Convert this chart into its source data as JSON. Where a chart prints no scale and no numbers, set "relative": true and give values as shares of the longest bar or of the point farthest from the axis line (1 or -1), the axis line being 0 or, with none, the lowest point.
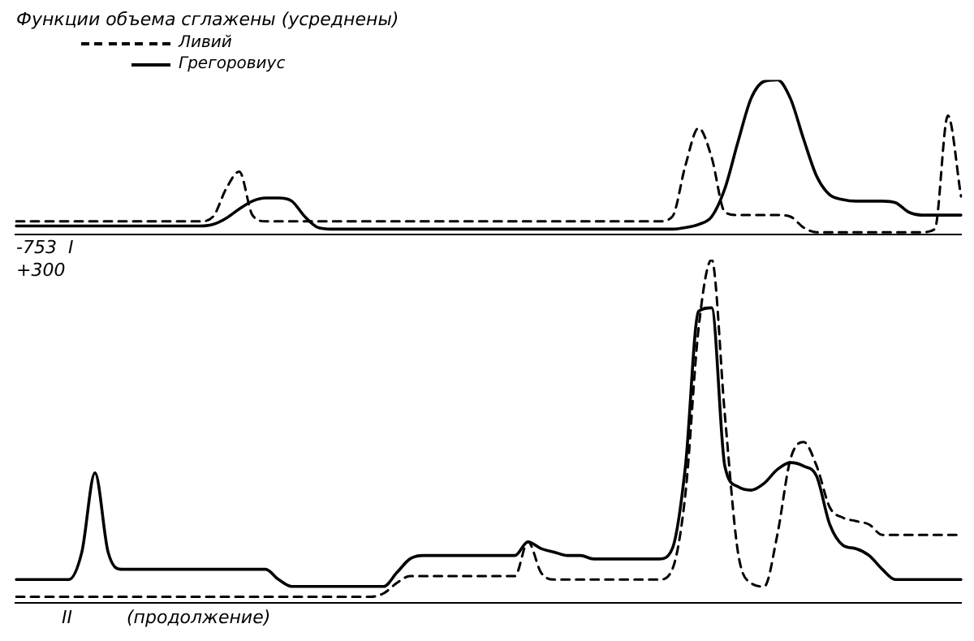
{
  "chart_data": [
    {
      "type": "line",
      "title": "Функции объема сглажены (усреднены)",
      "relative": true,
      "legend": "top left",
      "categories": [
        null,
        null,
        null,
        null,
        null,
        null,
        null,
        null,
        null,
        null,
        null,
        null,
        null,
        null,
        null,
        null,
        null,
        null,
        null,
        null,
        null,
        null,
        null,
        null,
        null,
        null,
        null,
        null,
        null,
        null,
        null,
        null,
        null,
        null,
        null,
        null,
        null,
        null,
        null,
        null,
        null,
        null,
        null,
        null,
        null,
        null,
        null,
        null,
        null,
        null,
        null,
        null,
        null,
        null,
        null,
        null,
        null,
        null,
        null,
        null,
        null,
        null,
        null,
        null,
        null,
        null,
        null,
        null,
        null,
        null,
        null,
        null,
        null
      ],
      "series": [
        {
          "name": "Ливий",
          "color": "#000000",
          "line_style": "dashed",
          "values": [
            0.09,
            0.09,
            0.09,
            0.09,
            0.09,
            0.09,
            0.09,
            0.09,
            0.09,
            0.09,
            0.09,
            0.09,
            0.09,
            0.09,
            0.09,
            0.12,
            0.3,
            0.41,
            0.13,
            0.09,
            0.09,
            0.09,
            0.09,
            0.09,
            0.09,
            0.09,
            0.09,
            0.09,
            0.09,
            0.09,
            0.09,
            0.09,
            0.09,
            0.09,
            0.09,
            0.09,
            0.09,
            0.09,
            0.09,
            0.09,
            0.09,
            0.09,
            0.09,
            0.09,
            0.09,
            0.09,
            0.09,
            0.09,
            0.09,
            0.09,
            0.12,
            0.45,
            0.69,
            0.5,
            0.15,
            0.13,
            0.13,
            0.13,
            0.13,
            0.12,
            0.05,
            0.02,
            0.02,
            0.02,
            0.02,
            0.02,
            0.02,
            0.02,
            0.02,
            0.02,
            0.04,
            0.77,
            0.25
          ]
        },
        {
          "name": "Грегоровиус",
          "color": "#000000",
          "line_style": "solid",
          "values": [
            0.06,
            0.06,
            0.06,
            0.06,
            0.06,
            0.06,
            0.06,
            0.06,
            0.06,
            0.06,
            0.06,
            0.06,
            0.06,
            0.06,
            0.06,
            0.07,
            0.11,
            0.17,
            0.22,
            0.24,
            0.24,
            0.22,
            0.12,
            0.05,
            0.04,
            0.04,
            0.04,
            0.04,
            0.04,
            0.04,
            0.04,
            0.04,
            0.04,
            0.04,
            0.04,
            0.04,
            0.04,
            0.04,
            0.04,
            0.04,
            0.04,
            0.04,
            0.04,
            0.04,
            0.04,
            0.04,
            0.04,
            0.04,
            0.04,
            0.04,
            0.04,
            0.05,
            0.07,
            0.12,
            0.3,
            0.6,
            0.88,
            0.99,
            1,
            0.88,
            0.62,
            0.38,
            0.26,
            0.23,
            0.22,
            0.22,
            0.22,
            0.21,
            0.15,
            0.13,
            0.13,
            0.13,
            0.13
          ]
        }
      ],
      "annotations": [
        "-753",
        "I"
      ]
    },
    {
      "type": "line",
      "relative": true,
      "categories": [
        null,
        null,
        null,
        null,
        null,
        null,
        null,
        null,
        null,
        null,
        null,
        null,
        null,
        null,
        null,
        null,
        null,
        null,
        null,
        null,
        null,
        null,
        null,
        null,
        null,
        null,
        null,
        null,
        null,
        null,
        null,
        null,
        null,
        null,
        null,
        null,
        null,
        null,
        null,
        null,
        null,
        null,
        null,
        null,
        null,
        null,
        null,
        null,
        null,
        null,
        null,
        null,
        null,
        null,
        null,
        null,
        null,
        null,
        null,
        null,
        null,
        null,
        null,
        null,
        null,
        null,
        null,
        null,
        null,
        null,
        null,
        null,
        null
      ],
      "series": [
        {
          "color": "#000000",
          "line_style": "dashed",
          "values": [
            0.02,
            0.02,
            0.02,
            0.02,
            0.02,
            0.02,
            0.02,
            0.02,
            0.02,
            0.02,
            0.02,
            0.02,
            0.02,
            0.02,
            0.02,
            0.02,
            0.02,
            0.02,
            0.02,
            0.02,
            0.02,
            0.02,
            0.02,
            0.02,
            0.02,
            0.02,
            0.02,
            0.02,
            0.03,
            0.06,
            0.08,
            0.08,
            0.08,
            0.08,
            0.08,
            0.08,
            0.08,
            0.08,
            0.08,
            0.18,
            0.09,
            0.07,
            0.07,
            0.07,
            0.07,
            0.07,
            0.07,
            0.07,
            0.07,
            0.07,
            0.1,
            0.32,
            0.8,
            1,
            0.55,
            0.15,
            0.06,
            0.05,
            0.2,
            0.42,
            0.47,
            0.4,
            0.28,
            0.25,
            0.24,
            0.23,
            0.2,
            0.2,
            0.2,
            0.2,
            0.2,
            0.2,
            0.2
          ]
        },
        {
          "color": "#000000",
          "line_style": "solid",
          "values": [
            0.07,
            0.07,
            0.07,
            0.07,
            0.07,
            0.15,
            0.38,
            0.15,
            0.1,
            0.1,
            0.1,
            0.1,
            0.1,
            0.1,
            0.1,
            0.1,
            0.1,
            0.1,
            0.1,
            0.1,
            0.07,
            0.05,
            0.05,
            0.05,
            0.05,
            0.05,
            0.05,
            0.05,
            0.05,
            0.09,
            0.13,
            0.14,
            0.14,
            0.14,
            0.14,
            0.14,
            0.14,
            0.14,
            0.14,
            0.18,
            0.16,
            0.15,
            0.14,
            0.14,
            0.13,
            0.13,
            0.13,
            0.13,
            0.13,
            0.13,
            0.16,
            0.4,
            0.85,
            0.86,
            0.4,
            0.34,
            0.33,
            0.35,
            0.39,
            0.41,
            0.4,
            0.37,
            0.23,
            0.17,
            0.16,
            0.14,
            0.1,
            0.07,
            0.07,
            0.07,
            0.07,
            0.07,
            0.07
          ]
        }
      ],
      "annotations": [
        "+300",
        "II",
        "(продолжение)"
      ]
    }
  ]
}
